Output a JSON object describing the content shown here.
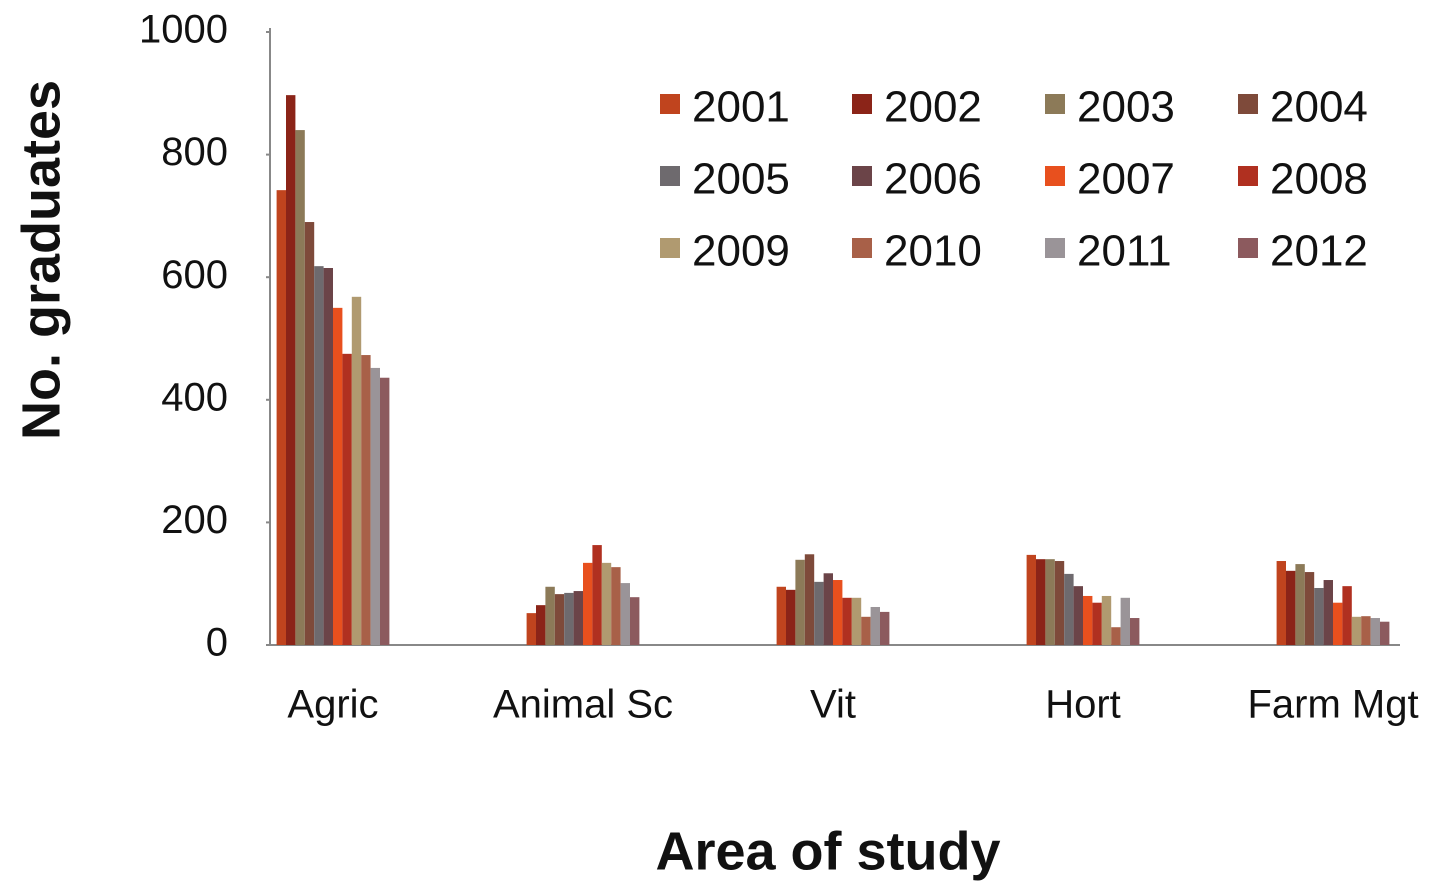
{
  "chart_data": {
    "type": "bar",
    "x_label": "Area of study",
    "y_label": "No. graduates",
    "categories": [
      "Agric",
      "Animal Sc",
      "Vit",
      "Hort",
      "Farm Mgt"
    ],
    "ylim": [
      0,
      1000
    ],
    "yticks": [
      0,
      200,
      400,
      600,
      800,
      1000
    ],
    "grid": false,
    "legend": "upper right",
    "series": [
      {
        "name": "2001",
        "color": "#c0441e",
        "values": [
          742,
          52,
          95,
          147,
          137
        ]
      },
      {
        "name": "2002",
        "color": "#8b2418",
        "values": [
          897,
          65,
          90,
          140,
          121
        ]
      },
      {
        "name": "2003",
        "color": "#8c7a58",
        "values": [
          840,
          95,
          139,
          140,
          132
        ]
      },
      {
        "name": "2004",
        "color": "#7e4a3a",
        "values": [
          690,
          83,
          148,
          137,
          119
        ]
      },
      {
        "name": "2005",
        "color": "#6e6a6e",
        "values": [
          618,
          85,
          103,
          116,
          93
        ]
      },
      {
        "name": "2006",
        "color": "#6b4448",
        "values": [
          615,
          88,
          117,
          96,
          106
        ]
      },
      {
        "name": "2007",
        "color": "#e8501e",
        "values": [
          550,
          134,
          106,
          80,
          69
        ]
      },
      {
        "name": "2008",
        "color": "#b03020",
        "values": [
          475,
          163,
          77,
          69,
          96
        ]
      },
      {
        "name": "2009",
        "color": "#b09a70",
        "values": [
          568,
          134,
          77,
          80,
          46
        ]
      },
      {
        "name": "2010",
        "color": "#a86048",
        "values": [
          473,
          127,
          46,
          29,
          47
        ]
      },
      {
        "name": "2011",
        "color": "#9a9498",
        "values": [
          452,
          101,
          62,
          77,
          44
        ]
      },
      {
        "name": "2012",
        "color": "#8c5a5e",
        "values": [
          436,
          78,
          54,
          44,
          38
        ]
      }
    ]
  }
}
